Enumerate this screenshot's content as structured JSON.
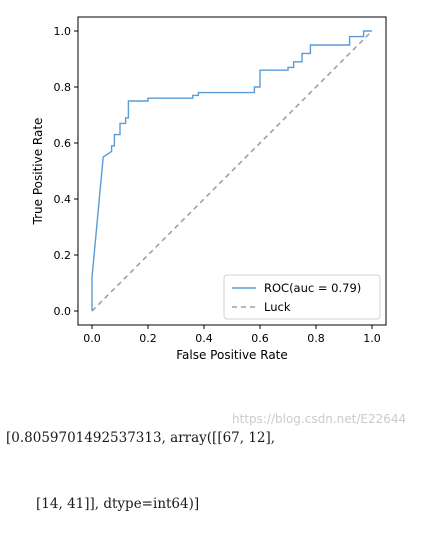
{
  "chart_data": {
    "type": "line",
    "xlabel": "False Positive Rate",
    "ylabel": "True Positive Rate",
    "xlim": [
      -0.05,
      1.05
    ],
    "ylim": [
      -0.05,
      1.05
    ],
    "xticks": [
      "0.0",
      "0.2",
      "0.4",
      "0.6",
      "0.8",
      "1.0"
    ],
    "yticks": [
      "0.0",
      "0.2",
      "0.4",
      "0.6",
      "0.8",
      "1.0"
    ],
    "grid": false,
    "legend": "bottom-right",
    "colors": {
      "roc": "#5b9bd5",
      "luck": "#a0a0a0"
    },
    "series": [
      {
        "name": "ROC(auc = 0.79)",
        "style": "solid",
        "x": [
          0.0,
          0.0,
          0.04,
          0.04,
          0.07,
          0.07,
          0.08,
          0.08,
          0.1,
          0.1,
          0.12,
          0.12,
          0.13,
          0.13,
          0.18,
          0.18,
          0.2,
          0.2,
          0.36,
          0.36,
          0.38,
          0.38,
          0.58,
          0.58,
          0.6,
          0.6,
          0.7,
          0.7,
          0.72,
          0.72,
          0.75,
          0.75,
          0.78,
          0.78,
          0.92,
          0.92,
          0.97,
          0.97,
          1.0
        ],
        "y": [
          0.0,
          0.12,
          0.55,
          0.55,
          0.57,
          0.59,
          0.59,
          0.63,
          0.63,
          0.67,
          0.67,
          0.69,
          0.69,
          0.75,
          0.75,
          0.75,
          0.75,
          0.76,
          0.76,
          0.77,
          0.77,
          0.78,
          0.78,
          0.8,
          0.8,
          0.86,
          0.86,
          0.87,
          0.87,
          0.89,
          0.89,
          0.92,
          0.92,
          0.95,
          0.95,
          0.98,
          0.98,
          1.0,
          1.0
        ]
      },
      {
        "name": "Luck",
        "style": "dashed",
        "x": [
          0,
          1
        ],
        "y": [
          0,
          1
        ]
      }
    ]
  },
  "output": {
    "line1": "[0.8059701492537313, array([[67, 12],",
    "line2": "       [14, 41]], dtype=int64)]"
  },
  "watermark": "https://blog.csdn.net/E22644"
}
